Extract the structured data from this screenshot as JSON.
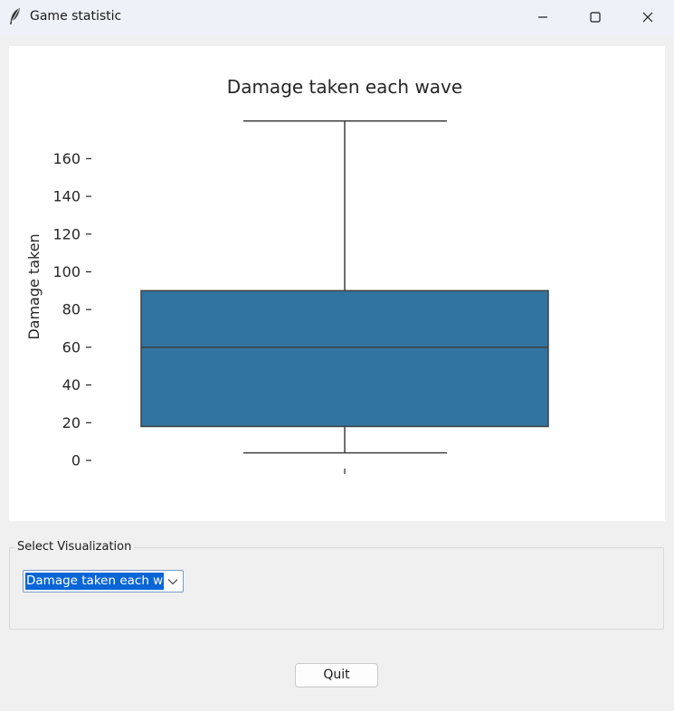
{
  "window": {
    "title": "Game statistic",
    "icon": "feather-icon",
    "controls": {
      "minimize": "minimize-icon",
      "maximize": "maximize-icon",
      "close": "close-icon"
    }
  },
  "visualization": {
    "group_label": "Select Visualization",
    "selected_option": "Damage taken each wave"
  },
  "actions": {
    "quit_label": "Quit"
  },
  "colors": {
    "box_fill": "#3274a1",
    "line": "#3f3f3f",
    "selection": "#0a66d6"
  },
  "chart_data": {
    "type": "box",
    "title": "Damage taken each wave",
    "ylabel": "Damage taken",
    "xlabel": "",
    "yticks": [
      0,
      20,
      40,
      60,
      80,
      100,
      120,
      140,
      160
    ],
    "ylim": [
      -6,
      182
    ],
    "box": {
      "whisker_low": 4,
      "q1": 18,
      "median": 60,
      "q3": 90,
      "whisker_high": 180
    },
    "grid": false
  }
}
